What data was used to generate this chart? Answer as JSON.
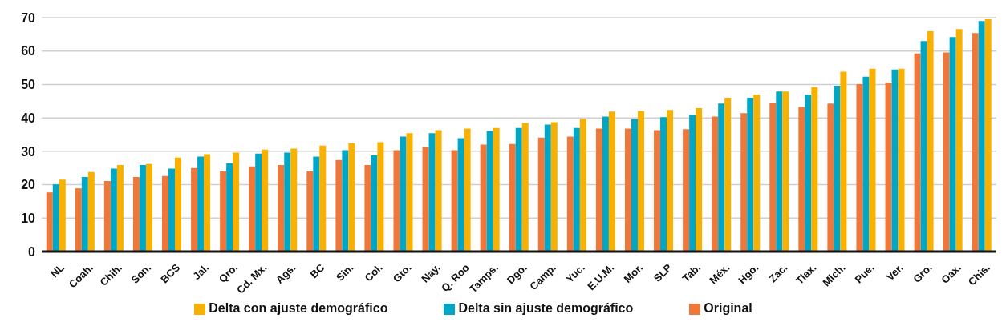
{
  "chart_data": {
    "type": "bar",
    "categories": [
      "NL",
      "Coah.",
      "Chih.",
      "Son.",
      "BCS",
      "Jal.",
      "Qro.",
      "Cd. Mx.",
      "Ags.",
      "BC",
      "Sin.",
      "Col.",
      "Gto.",
      "Nay.",
      "Q. Roo",
      "Tamps.",
      "Dgo.",
      "Camp.",
      "Yuc.",
      "E.U.M.",
      "Mor.",
      "SLP",
      "Tab.",
      "Méx.",
      "Hgo.",
      "Zac.",
      "Tlax.",
      "Mich.",
      "Pue.",
      "Ver.",
      "Gro.",
      "Oax.",
      "Chis."
    ],
    "series": [
      {
        "name": "Original",
        "color": "#ee7739",
        "values": [
          17.7,
          18.9,
          21.1,
          22.3,
          22.6,
          25.0,
          24.0,
          25.5,
          25.9,
          24.0,
          27.4,
          25.9,
          30.3,
          31.2,
          30.3,
          32.0,
          32.2,
          34.1,
          34.4,
          36.8,
          36.8,
          36.3,
          36.6,
          40.4,
          41.4,
          44.6,
          43.3,
          44.3,
          50.1,
          50.6,
          59.3,
          59.6,
          65.4
        ]
      },
      {
        "name": "Delta sin ajuste demográfico",
        "color": "#00a6c5",
        "values": [
          20.1,
          22.3,
          24.8,
          25.9,
          24.8,
          28.4,
          26.4,
          29.3,
          29.6,
          28.4,
          30.3,
          28.8,
          34.4,
          35.4,
          33.9,
          36.1,
          37.0,
          38.0,
          37.0,
          40.4,
          39.7,
          40.2,
          40.9,
          44.3,
          46.0,
          47.9,
          47.0,
          49.6,
          52.3,
          54.5,
          63.0,
          64.2,
          69.0
        ]
      },
      {
        "name": "Delta con ajuste  demográfico",
        "color": "#f8b100",
        "values": [
          21.5,
          23.8,
          25.9,
          26.2,
          28.1,
          29.1,
          29.6,
          30.5,
          30.8,
          31.7,
          32.4,
          32.7,
          35.4,
          36.3,
          36.8,
          37.0,
          38.5,
          38.7,
          39.7,
          41.9,
          42.1,
          42.4,
          42.9,
          46.0,
          47.0,
          47.9,
          49.2,
          53.8,
          54.7,
          54.7,
          65.9,
          66.6,
          69.5
        ]
      }
    ],
    "ylim": [
      0,
      70
    ],
    "yticks": [
      0,
      10,
      20,
      30,
      40,
      50,
      60,
      70
    ],
    "grid": "y",
    "legend": "bottom"
  }
}
